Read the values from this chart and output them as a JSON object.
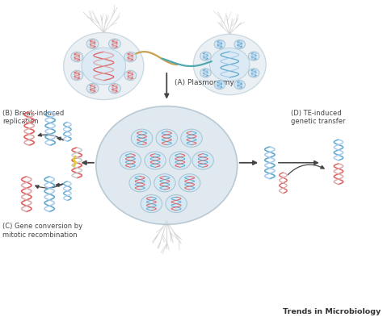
{
  "background_color": "#ffffff",
  "brand_text": "Trends in Microbiology",
  "labels": {
    "A": "(A) Plasmogamy",
    "B": "(B) Break-induced\nreplication",
    "C": "(C) Gene conversion by\nmitotic recombination",
    "D": "(D) TE-induced\ngenetic transfer"
  },
  "colors": {
    "red_dna": "#e06060",
    "blue_dna": "#60aace",
    "spore_fill": "#e8eef3",
    "spore_border": "#c5d5df",
    "nucleus_fill": "#d5e8f5",
    "nucleus_border": "#a0bece",
    "central_fill": "#d0dfe8",
    "central_border": "#a5bece",
    "hyphae_gold": "#c8a050",
    "hyphae_teal": "#50a8b0",
    "hyphae_gray": "#c8c8c8",
    "arrow_color": "#444444",
    "lightning_color": "#e8c840",
    "label_color": "#444444"
  },
  "figsize": [
    4.74,
    3.98
  ],
  "dpi": 100
}
